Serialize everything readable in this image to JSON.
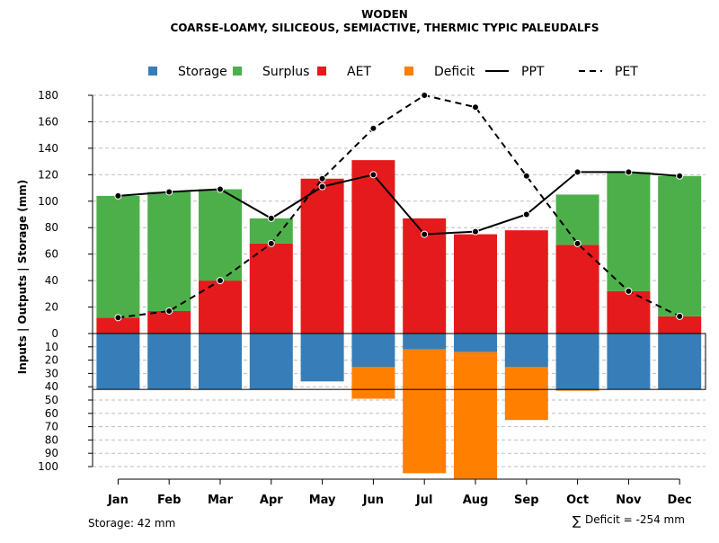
{
  "title": "WODEN",
  "subtitle": "COARSE-LOAMY, SILICEOUS, SEMIACTIVE, THERMIC TYPIC PALEUDALFS",
  "ylabel": "Inputs | Outputs | Storage    (mm)",
  "footer_left": "Storage: 42 mm",
  "footer_right_symbol": "∑",
  "footer_right": "Deficit = -254 mm",
  "colors": {
    "storage": "#377EB8",
    "surplus": "#4DAF4A",
    "aet": "#E41A1C",
    "deficit": "#FF7F00",
    "line": "#000000",
    "grid": "#BEBEBE"
  },
  "legend": [
    {
      "key": "storage",
      "label": "Storage",
      "kind": "box"
    },
    {
      "key": "surplus",
      "label": "Surplus",
      "kind": "box"
    },
    {
      "key": "aet",
      "label": "AET",
      "kind": "box"
    },
    {
      "key": "deficit",
      "label": "Deficit",
      "kind": "box"
    },
    {
      "key": "ppt",
      "label": "PPT",
      "kind": "solid"
    },
    {
      "key": "pet",
      "label": "PET",
      "kind": "dashed"
    }
  ],
  "chart_data": {
    "type": "bar",
    "categories": [
      "Jan",
      "Feb",
      "Mar",
      "Apr",
      "May",
      "Jun",
      "Jul",
      "Aug",
      "Sep",
      "Oct",
      "Nov",
      "Dec"
    ],
    "upper_ylim": [
      0,
      180
    ],
    "upper_ticks": [
      0,
      20,
      40,
      60,
      80,
      100,
      120,
      140,
      160,
      180
    ],
    "lower_ylim": [
      0,
      100
    ],
    "lower_ticks": [
      0,
      10,
      20,
      30,
      40,
      50,
      60,
      70,
      80,
      90,
      100
    ],
    "storage_capacity": 42,
    "series": [
      {
        "name": "AET",
        "key": "aet",
        "values": [
          12,
          17,
          40,
          68,
          117,
          131,
          87,
          75,
          78,
          67,
          32,
          13
        ]
      },
      {
        "name": "Surplus",
        "key": "surplus",
        "values": [
          92,
          90,
          69,
          19,
          0,
          0,
          0,
          0,
          0,
          38,
          90,
          106
        ]
      },
      {
        "name": "Storage",
        "key": "storage",
        "values": [
          42,
          42,
          42,
          42,
          36,
          25,
          12,
          14,
          25,
          42,
          42,
          42
        ]
      },
      {
        "name": "Deficit",
        "key": "deficit",
        "values": [
          0,
          0,
          0,
          0,
          0,
          24,
          93,
          95,
          40,
          1,
          0,
          0
        ]
      },
      {
        "name": "PPT",
        "key": "ppt",
        "values": [
          104,
          107,
          109,
          87,
          111,
          120,
          75,
          77,
          90,
          122,
          122,
          119
        ]
      },
      {
        "name": "PET",
        "key": "pet",
        "values": [
          12,
          17,
          40,
          68,
          117,
          155,
          180,
          171,
          119,
          68,
          32,
          13
        ]
      }
    ]
  }
}
